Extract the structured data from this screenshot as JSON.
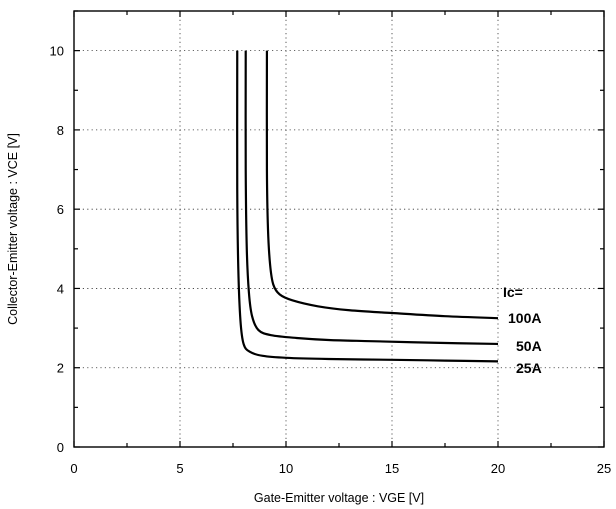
{
  "chart_data": {
    "type": "line",
    "title": "",
    "xlabel": "Gate-Emitter  voltage  :  VGE [V]",
    "ylabel": "Collector-Emitter  voltage  :   VCE [V]",
    "xlim": [
      0,
      25
    ],
    "ylim": [
      0,
      11
    ],
    "x_ticks": [
      0,
      5,
      10,
      15,
      20,
      25
    ],
    "y_ticks": [
      0,
      2,
      4,
      6,
      8,
      10
    ],
    "grid": true,
    "legend_title": "Ic=",
    "series": [
      {
        "name": "100A",
        "x": [
          9.1,
          9.1,
          9.15,
          9.25,
          9.4,
          9.7,
          10.3,
          11.5,
          13,
          15,
          17.5,
          20
        ],
        "y": [
          10.0,
          7.0,
          5.5,
          4.6,
          4.1,
          3.85,
          3.7,
          3.55,
          3.45,
          3.38,
          3.3,
          3.25
        ]
      },
      {
        "name": "50A",
        "x": [
          8.1,
          8.1,
          8.15,
          8.25,
          8.4,
          8.7,
          9.3,
          10.5,
          12,
          14,
          17,
          20
        ],
        "y": [
          10.0,
          7.0,
          5.0,
          3.9,
          3.3,
          2.95,
          2.82,
          2.75,
          2.7,
          2.67,
          2.63,
          2.6
        ]
      },
      {
        "name": "25A",
        "x": [
          7.7,
          7.7,
          7.75,
          7.85,
          8.0,
          8.3,
          8.9,
          10,
          12,
          15,
          17.5,
          20
        ],
        "y": [
          10.0,
          6.5,
          4.5,
          3.2,
          2.6,
          2.4,
          2.3,
          2.25,
          2.22,
          2.2,
          2.18,
          2.16
        ]
      }
    ]
  }
}
